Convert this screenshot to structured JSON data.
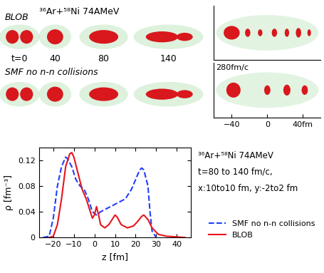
{
  "snapshots": {
    "title": "³⁶Ar+⁵⁸Ni 74AMeV",
    "rows": [
      "BLOB",
      "SMF no n-n collisions"
    ],
    "times": [
      "t=0",
      "40",
      "80",
      "140"
    ],
    "late_time": "280fm/c",
    "late_xlim": [
      -60,
      60
    ],
    "late_xticks": [
      {
        "value": -40,
        "label": "−40"
      },
      {
        "value": 0,
        "label": "0"
      },
      {
        "value": 40,
        "label": "40fm"
      }
    ]
  },
  "chart_data": {
    "type": "line",
    "annotations": [
      "³⁶Ar+⁵⁸Ni 74AMeV",
      "t=80 to 140 fm/c,",
      "x:10to10 fm, y:-2to2 fm"
    ],
    "x_label": "z [fm]",
    "y_label": "ρ [fm⁻³]",
    "xlim": [
      -27,
      47
    ],
    "ylim": [
      0,
      0.14
    ],
    "xticks": [
      {
        "value": -20,
        "label": "−20"
      },
      {
        "value": -10,
        "label": "−10"
      },
      0,
      10,
      20,
      30,
      40
    ],
    "yticks": [
      0,
      0.04,
      0.08,
      0.12
    ],
    "legend": "lower right",
    "series": [
      {
        "name": "SMF no n-n collisions",
        "color": "#1f3fff",
        "line_style": "dashed",
        "x": [
          -25,
          -22,
          -20,
          -18,
          -16,
          -14,
          -13,
          -11,
          -9,
          -7,
          -5,
          -3,
          -1,
          1,
          3,
          6,
          9,
          12,
          15,
          18,
          20,
          22,
          23,
          24,
          26,
          27,
          28,
          30
        ],
        "values": [
          0,
          0.002,
          0.03,
          0.08,
          0.11,
          0.125,
          0.122,
          0.11,
          0.09,
          0.08,
          0.075,
          0.06,
          0.04,
          0.035,
          0.04,
          0.045,
          0.05,
          0.055,
          0.06,
          0.075,
          0.09,
          0.105,
          0.108,
          0.105,
          0.08,
          0.04,
          0.01,
          0
        ]
      },
      {
        "name": "BLOB",
        "color": "#e8141c",
        "line_style": "solid",
        "x": [
          -22,
          -20,
          -18,
          -16,
          -14,
          -12,
          -11,
          -10,
          -8,
          -6,
          -4,
          -2,
          -1,
          0,
          1,
          2,
          3,
          5,
          7,
          9,
          10,
          11,
          13,
          16,
          19,
          21,
          23,
          24,
          26,
          28,
          31,
          35,
          40,
          44
        ],
        "values": [
          0,
          0.002,
          0.02,
          0.06,
          0.11,
          0.13,
          0.132,
          0.125,
          0.1,
          0.075,
          0.06,
          0.04,
          0.03,
          0.035,
          0.048,
          0.035,
          0.02,
          0.015,
          0.02,
          0.03,
          0.035,
          0.032,
          0.02,
          0.015,
          0.018,
          0.025,
          0.033,
          0.035,
          0.028,
          0.015,
          0.005,
          0.002,
          0.001,
          0
        ]
      }
    ]
  }
}
